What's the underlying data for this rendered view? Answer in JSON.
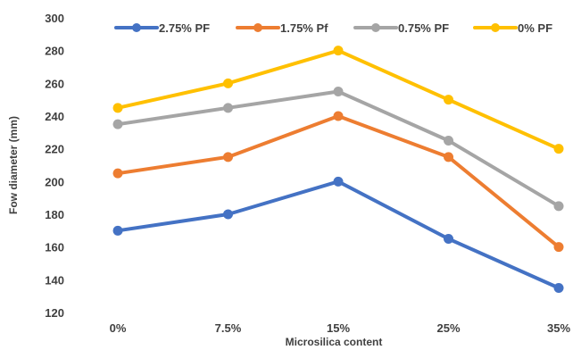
{
  "chart_data": {
    "type": "line",
    "title": "",
    "xlabel": "Microsilica content",
    "ylabel": "Fow diameter (mm)",
    "categories": [
      "0%",
      "7.5%",
      "15%",
      "25%",
      "35%"
    ],
    "ylim": [
      120,
      300
    ],
    "yticks": [
      120,
      140,
      160,
      180,
      200,
      220,
      240,
      260,
      280,
      300
    ],
    "grid": false,
    "legend": "top",
    "series": [
      {
        "name": "2.75% PF",
        "color": "#4472C4",
        "values": [
          170,
          180,
          200,
          165,
          135
        ]
      },
      {
        "name": "1.75% Pf",
        "color": "#ED7D31",
        "values": [
          205,
          215,
          240,
          215,
          160
        ]
      },
      {
        "name": "0.75% PF",
        "color": "#A5A5A5",
        "values": [
          235,
          245,
          255,
          225,
          185
        ]
      },
      {
        "name": "0% PF",
        "color": "#FFC000",
        "values": [
          245,
          260,
          280,
          250,
          220
        ]
      }
    ]
  }
}
